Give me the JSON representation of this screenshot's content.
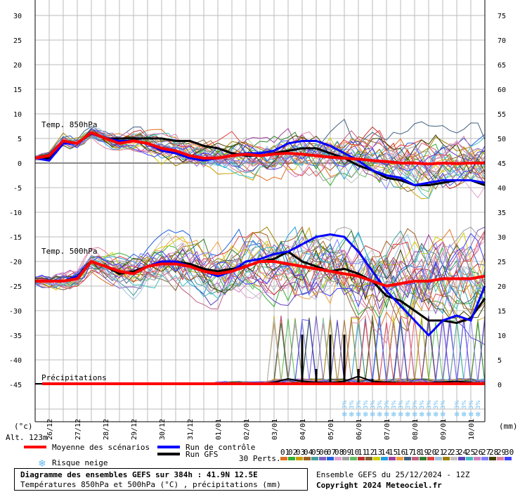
{
  "chart_data": {
    "type": "line",
    "left_axis": {
      "unit": "(°c)",
      "ticks": [
        30,
        25,
        20,
        15,
        10,
        5,
        0,
        -5,
        -10,
        -15,
        -20,
        -25,
        -30,
        -35,
        -40,
        -45
      ]
    },
    "right_axis": {
      "unit": "(mm)",
      "ticks": [
        75,
        70,
        65,
        60,
        55,
        50,
        45,
        40,
        35,
        30,
        25,
        20,
        15,
        10,
        5,
        0
      ]
    },
    "x_dates": [
      "26/12",
      "27/12",
      "28/12",
      "29/12",
      "30/12",
      "31/12",
      "01/01",
      "02/01",
      "03/01",
      "04/01",
      "05/01",
      "06/01",
      "07/01",
      "08/01",
      "09/01",
      "10/01"
    ],
    "x_range_days": [
      0,
      16
    ],
    "panel_labels": {
      "t850": "Temp. 850hPa",
      "t500": "Temp. 500hPa",
      "precip": "Précipitations"
    },
    "altitude_label": "Alt. 123m",
    "mean_850": [
      [
        0,
        1.0
      ],
      [
        0.5,
        1.5
      ],
      [
        1,
        4.5
      ],
      [
        1.5,
        4.0
      ],
      [
        2,
        6.2
      ],
      [
        2.5,
        5.0
      ],
      [
        3,
        4.0
      ],
      [
        3.5,
        4.5
      ],
      [
        4,
        4.0
      ],
      [
        4.5,
        3.0
      ],
      [
        5,
        2.5
      ],
      [
        5.5,
        1.5
      ],
      [
        6,
        1.0
      ],
      [
        6.5,
        1.0
      ],
      [
        7,
        1.5
      ],
      [
        7.5,
        1.8
      ],
      [
        8,
        1.5
      ],
      [
        8.5,
        1.8
      ],
      [
        9,
        2.0
      ],
      [
        9.5,
        1.8
      ],
      [
        10,
        1.5
      ],
      [
        10.5,
        1.2
      ],
      [
        11,
        1.0
      ],
      [
        11.5,
        0.8
      ],
      [
        12,
        0.5
      ],
      [
        12.5,
        0.3
      ],
      [
        13,
        0.0
      ],
      [
        13.5,
        0.0
      ],
      [
        14,
        -0.2
      ],
      [
        14.5,
        0.0
      ],
      [
        15,
        -0.1
      ],
      [
        15.5,
        0.0
      ],
      [
        16,
        0.0
      ]
    ],
    "control_850": [
      [
        0,
        1.0
      ],
      [
        0.5,
        0.5
      ],
      [
        1,
        4.0
      ],
      [
        1.5,
        4.0
      ],
      [
        2,
        6.0
      ],
      [
        2.5,
        5.0
      ],
      [
        3,
        4.5
      ],
      [
        3.5,
        4.5
      ],
      [
        4,
        4.0
      ],
      [
        4.5,
        2.5
      ],
      [
        5,
        2.0
      ],
      [
        5.5,
        1.0
      ],
      [
        6,
        0.5
      ],
      [
        6.5,
        1.0
      ],
      [
        7,
        1.5
      ],
      [
        7.5,
        2.0
      ],
      [
        8,
        2.0
      ],
      [
        8.5,
        2.5
      ],
      [
        9,
        4.0
      ],
      [
        9.5,
        4.5
      ],
      [
        10,
        4.5
      ],
      [
        10.5,
        3.5
      ],
      [
        11,
        2.0
      ],
      [
        11.5,
        0.5
      ],
      [
        12,
        -1.5
      ],
      [
        12.5,
        -2.5
      ],
      [
        13,
        -3.0
      ],
      [
        13.5,
        -4.5
      ],
      [
        14,
        -4.0
      ],
      [
        14.5,
        -3.5
      ],
      [
        15,
        -3.5
      ],
      [
        15.5,
        -3.5
      ],
      [
        16,
        -4.0
      ]
    ],
    "gfs_850": [
      [
        0,
        1.0
      ],
      [
        0.5,
        1.0
      ],
      [
        1,
        4.5
      ],
      [
        1.5,
        4.0
      ],
      [
        2,
        6.0
      ],
      [
        2.5,
        5.0
      ],
      [
        3,
        5.0
      ],
      [
        3.5,
        5.0
      ],
      [
        4,
        5.0
      ],
      [
        4.5,
        5.0
      ],
      [
        5,
        4.5
      ],
      [
        5.5,
        4.5
      ],
      [
        6,
        3.5
      ],
      [
        6.5,
        3.0
      ],
      [
        7,
        2.0
      ],
      [
        7.5,
        1.5
      ],
      [
        8,
        1.5
      ],
      [
        8.5,
        2.0
      ],
      [
        9,
        2.5
      ],
      [
        9.5,
        3.0
      ],
      [
        10,
        3.0
      ],
      [
        10.5,
        2.0
      ],
      [
        11,
        1.0
      ],
      [
        11.5,
        -0.5
      ],
      [
        12,
        -1.5
      ],
      [
        12.5,
        -3.0
      ],
      [
        13,
        -3.5
      ],
      [
        13.5,
        -4.5
      ],
      [
        14,
        -4.5
      ],
      [
        14.5,
        -4.0
      ],
      [
        15,
        -3.5
      ],
      [
        15.5,
        -3.5
      ],
      [
        16,
        -4.5
      ]
    ],
    "mean_500": [
      [
        0,
        -24.0
      ],
      [
        0.5,
        -24.0
      ],
      [
        1,
        -24.0
      ],
      [
        1.5,
        -23.5
      ],
      [
        2,
        -20.0
      ],
      [
        2.5,
        -21.0
      ],
      [
        3,
        -22.0
      ],
      [
        3.5,
        -22.5
      ],
      [
        4,
        -21.0
      ],
      [
        4.5,
        -20.5
      ],
      [
        5,
        -20.5
      ],
      [
        5.5,
        -21.0
      ],
      [
        6,
        -22.0
      ],
      [
        6.5,
        -22.5
      ],
      [
        7,
        -22.0
      ],
      [
        7.5,
        -21.0
      ],
      [
        8,
        -20.0
      ],
      [
        8.5,
        -20.0
      ],
      [
        9,
        -20.5
      ],
      [
        9.5,
        -21.0
      ],
      [
        10,
        -21.5
      ],
      [
        10.5,
        -22.0
      ],
      [
        11,
        -22.5
      ],
      [
        11.5,
        -23.0
      ],
      [
        12,
        -24.0
      ],
      [
        12.5,
        -25.0
      ],
      [
        13,
        -24.5
      ],
      [
        13.5,
        -24.0
      ],
      [
        14,
        -24.0
      ],
      [
        14.5,
        -23.5
      ],
      [
        15,
        -23.5
      ],
      [
        15.5,
        -23.5
      ],
      [
        16,
        -23.0
      ]
    ],
    "control_500": [
      [
        0,
        -24.0
      ],
      [
        0.5,
        -24.0
      ],
      [
        1,
        -24.0
      ],
      [
        1.5,
        -23.0
      ],
      [
        2,
        -20.0
      ],
      [
        2.5,
        -21.0
      ],
      [
        3,
        -22.0
      ],
      [
        3.5,
        -22.5
      ],
      [
        4,
        -21.0
      ],
      [
        4.5,
        -20.0
      ],
      [
        5,
        -20.0
      ],
      [
        5.5,
        -21.0
      ],
      [
        6,
        -22.0
      ],
      [
        6.5,
        -23.0
      ],
      [
        7,
        -22.0
      ],
      [
        7.5,
        -20.0
      ],
      [
        8,
        -19.5
      ],
      [
        8.5,
        -18.5
      ],
      [
        9,
        -18.0
      ],
      [
        9.5,
        -16.5
      ],
      [
        10,
        -15.0
      ],
      [
        10.5,
        -14.5
      ],
      [
        11,
        -15.0
      ],
      [
        11.5,
        -18.0
      ],
      [
        12,
        -22.0
      ],
      [
        12.5,
        -26.0
      ],
      [
        13,
        -29.0
      ],
      [
        13.5,
        -32.0
      ],
      [
        14,
        -35.0
      ],
      [
        14.5,
        -32.0
      ],
      [
        15,
        -31.0
      ],
      [
        15.5,
        -32.0
      ],
      [
        16,
        -25.0
      ]
    ],
    "gfs_500": [
      [
        0,
        -24.0
      ],
      [
        0.5,
        -24.0
      ],
      [
        1,
        -24.0
      ],
      [
        1.5,
        -23.0
      ],
      [
        2,
        -20.0
      ],
      [
        2.5,
        -21.0
      ],
      [
        3,
        -22.5
      ],
      [
        3.5,
        -22.0
      ],
      [
        4,
        -21.0
      ],
      [
        4.5,
        -20.0
      ],
      [
        5,
        -20.0
      ],
      [
        5.5,
        -20.5
      ],
      [
        6,
        -21.5
      ],
      [
        6.5,
        -22.0
      ],
      [
        7,
        -21.5
      ],
      [
        7.5,
        -21.0
      ],
      [
        8,
        -20.0
      ],
      [
        8.5,
        -19.5
      ],
      [
        9,
        -18.0
      ],
      [
        9.5,
        -20.0
      ],
      [
        10,
        -21.0
      ],
      [
        10.5,
        -22.0
      ],
      [
        11,
        -21.5
      ],
      [
        11.5,
        -22.5
      ],
      [
        12,
        -24.0
      ],
      [
        12.5,
        -27.0
      ],
      [
        13,
        -28.0
      ],
      [
        13.5,
        -30.0
      ],
      [
        14,
        -32.0
      ],
      [
        14.5,
        -32.0
      ],
      [
        15,
        -32.5
      ],
      [
        15.5,
        -31.5
      ],
      [
        16,
        -27.5
      ]
    ],
    "gfs_precip_mm": [
      [
        0,
        0
      ],
      [
        6,
        0
      ],
      [
        7,
        0
      ],
      [
        8,
        0
      ],
      [
        8.5,
        0.3
      ],
      [
        9,
        1
      ],
      [
        9.5,
        0.5
      ],
      [
        10,
        0.3
      ],
      [
        10.5,
        0.2
      ],
      [
        11,
        0.5
      ],
      [
        11.5,
        1.5
      ],
      [
        12,
        0.5
      ],
      [
        12.5,
        0.3
      ],
      [
        13,
        0.2
      ],
      [
        14,
        0.2
      ],
      [
        15,
        0.5
      ],
      [
        16,
        0
      ]
    ],
    "gfs_precip_peak": [
      [
        9.5,
        10
      ],
      [
        10,
        3
      ],
      [
        10.5,
        10
      ],
      [
        11,
        10
      ],
      [
        11.5,
        3
      ],
      [
        12,
        1
      ],
      [
        12.5,
        0.5
      ]
    ],
    "snow_risk_days": [
      11,
      11.25,
      11.5,
      11.75,
      12,
      12.25,
      12.5,
      12.75,
      13,
      13.25,
      13.5,
      13.75,
      14,
      14.25,
      14.5,
      15,
      15.25,
      15.5,
      15.75
    ],
    "snow_marker_text": "3%",
    "colors": {
      "mean": "#ff0000",
      "control": "#0000ff",
      "gfs": "#000000",
      "grid": "#bbbbbb",
      "snow": "#66bbee"
    }
  },
  "legend": {
    "mean": "Moyenne des scénarios",
    "control": "Run de contrôle",
    "gfs": "Run GFS",
    "snow": "Risque neige",
    "perts_label": "30 Perts.",
    "perts_numbers": [
      "01",
      "02",
      "03",
      "04",
      "05",
      "06",
      "07",
      "08",
      "09",
      "10",
      "11",
      "12",
      "13",
      "14",
      "15",
      "16",
      "17",
      "18",
      "19",
      "20",
      "21",
      "22",
      "23",
      "24",
      "25",
      "26",
      "27",
      "28",
      "29",
      "30"
    ],
    "perts_colors": [
      "#e07020",
      "#30b030",
      "#c8a000",
      "#a06020",
      "#40a0a0",
      "#8060c0",
      "#2060e0",
      "#e0a0d0",
      "#a0a0a0",
      "#60c060",
      "#c03030",
      "#806030",
      "#d0d000",
      "#20a0e0",
      "#a040a0",
      "#f0a040",
      "#406080",
      "#c06080",
      "#308030",
      "#e04040",
      "#a0c0e0",
      "#a08000",
      "#c0c0c0",
      "#6040c0",
      "#40c0c0",
      "#d080c0",
      "#8080ff",
      "#404000",
      "#e080a0",
      "#4040ff"
    ]
  },
  "info": {
    "title": "Diagramme des ensembles GEFS sur 384h : 41.9N 12.5E",
    "subtitle": "Températures 850hPa et 500hPa (°C) , précipitations (mm)",
    "run": "Ensemble GEFS du 25/12/2024 - 12Z",
    "copyright": "Copyright 2024 Meteociel.fr"
  }
}
